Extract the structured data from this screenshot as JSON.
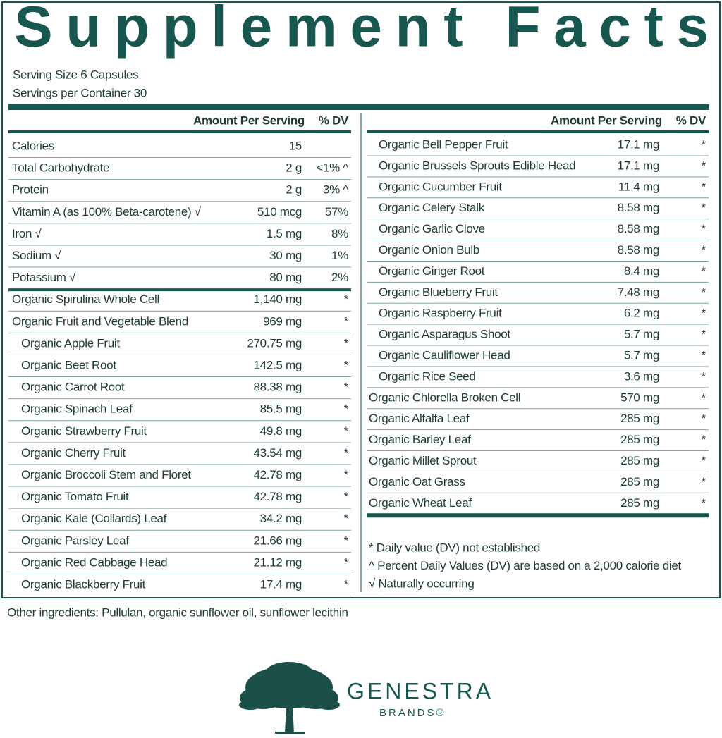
{
  "header": {
    "title": "Supplement Facts",
    "serving_size": "Serving Size 6 Capsules",
    "servings_per_container": "Servings per Container 30"
  },
  "left_table": {
    "amount_header": "Amount Per Serving",
    "dv_header": "% DV",
    "nutrients": [
      {
        "name": "Calories",
        "amount": "15"
      },
      {
        "name": "Total Carbohydrate",
        "amount": "2 g",
        "dv": "<1% ^"
      },
      {
        "name": "Protein",
        "amount": "2 g",
        "dv": "3% ^"
      },
      {
        "name": "Vitamin A (as 100% Beta-carotene) √",
        "amount": "510 mcg",
        "dv": "57%"
      },
      {
        "name": "Iron √",
        "amount": "1.5 mg",
        "dv": "8%"
      },
      {
        "name": "Sodium √",
        "amount": "30 mg",
        "dv": "1%"
      },
      {
        "name": "Potassium √",
        "amount": "80 mg",
        "dv": "2%"
      }
    ],
    "ingredients": [
      {
        "name": "Organic Spirulina Whole Cell",
        "amount": "1,140 mg",
        "dv": "*"
      },
      {
        "name": "Organic Fruit and Vegetable Blend",
        "amount": "969 mg",
        "dv": "*"
      }
    ],
    "blend_items": [
      {
        "name": "Organic Apple Fruit",
        "amount": "270.75 mg",
        "dv": "*"
      },
      {
        "name": "Organic Beet Root",
        "amount": "142.5 mg",
        "dv": "*"
      },
      {
        "name": "Organic Carrot Root",
        "amount": "88.38 mg",
        "dv": "*"
      },
      {
        "name": "Organic Spinach Leaf",
        "amount": "85.5 mg",
        "dv": "*"
      },
      {
        "name": "Organic Strawberry Fruit",
        "amount": "49.8 mg",
        "dv": "*"
      },
      {
        "name": "Organic Cherry Fruit",
        "amount": "43.54 mg",
        "dv": "*"
      },
      {
        "name": "Organic Broccoli Stem and Floret",
        "amount": "42.78 mg",
        "dv": "*"
      },
      {
        "name": "Organic Tomato Fruit",
        "amount": "42.78 mg",
        "dv": "*"
      },
      {
        "name": "Organic Kale (Collards) Leaf",
        "amount": "34.2 mg",
        "dv": "*"
      },
      {
        "name": "Organic Parsley Leaf",
        "amount": "21.66 mg",
        "dv": "*"
      },
      {
        "name": "Organic Red Cabbage Head",
        "amount": "21.12 mg",
        "dv": "*"
      },
      {
        "name": "Organic Blackberry Fruit",
        "amount": "17.4 mg",
        "dv": "*"
      }
    ]
  },
  "right_table": {
    "amount_header": "Amount Per Serving",
    "dv_header": "% DV",
    "blend_items": [
      {
        "name": "Organic Bell Pepper Fruit",
        "amount": "17.1 mg",
        "dv": "*"
      },
      {
        "name": "Organic Brussels Sprouts Edible Head",
        "amount": "17.1 mg",
        "dv": "*"
      },
      {
        "name": "Organic Cucumber Fruit",
        "amount": "11.4 mg",
        "dv": "*"
      },
      {
        "name": "Organic Celery Stalk",
        "amount": "8.58 mg",
        "dv": "*"
      },
      {
        "name": "Organic Garlic Clove",
        "amount": "8.58 mg",
        "dv": "*"
      },
      {
        "name": "Organic Onion Bulb",
        "amount": "8.58 mg",
        "dv": "*"
      },
      {
        "name": "Organic Ginger Root",
        "amount": "8.4 mg",
        "dv": "*"
      },
      {
        "name": "Organic Blueberry Fruit",
        "amount": "7.48 mg",
        "dv": "*"
      },
      {
        "name": "Organic Raspberry Fruit",
        "amount": "6.2 mg",
        "dv": "*"
      },
      {
        "name": "Organic Asparagus Shoot",
        "amount": "5.7 mg",
        "dv": "*"
      },
      {
        "name": "Organic Cauliflower Head",
        "amount": "5.7 mg",
        "dv": "*"
      },
      {
        "name": "Organic Rice Seed",
        "amount": "3.6 mg",
        "dv": "*"
      }
    ],
    "ingredients": [
      {
        "name": "Organic Chlorella Broken Cell",
        "amount": "570 mg",
        "dv": "*"
      },
      {
        "name": "Organic Alfalfa Leaf",
        "amount": "285 mg",
        "dv": "*"
      },
      {
        "name": "Organic Barley Leaf",
        "amount": "285 mg",
        "dv": "*"
      },
      {
        "name": "Organic Millet Sprout",
        "amount": "285 mg",
        "dv": "*"
      },
      {
        "name": "Organic Oat Grass",
        "amount": "285 mg",
        "dv": "*"
      },
      {
        "name": "Organic Wheat Leaf",
        "amount": "285 mg",
        "dv": "*"
      }
    ],
    "footnotes": [
      "* Daily value (DV) not established",
      "^ Percent Daily Values (DV) are based on a 2,000 calorie diet",
      "√ Naturally occurring"
    ]
  },
  "other_ingredients": "Other ingredients: Pullulan, organic sunflower oil, sunflower lecithin",
  "brand": {
    "name": "GENESTRA",
    "sub": "BRANDS®"
  }
}
